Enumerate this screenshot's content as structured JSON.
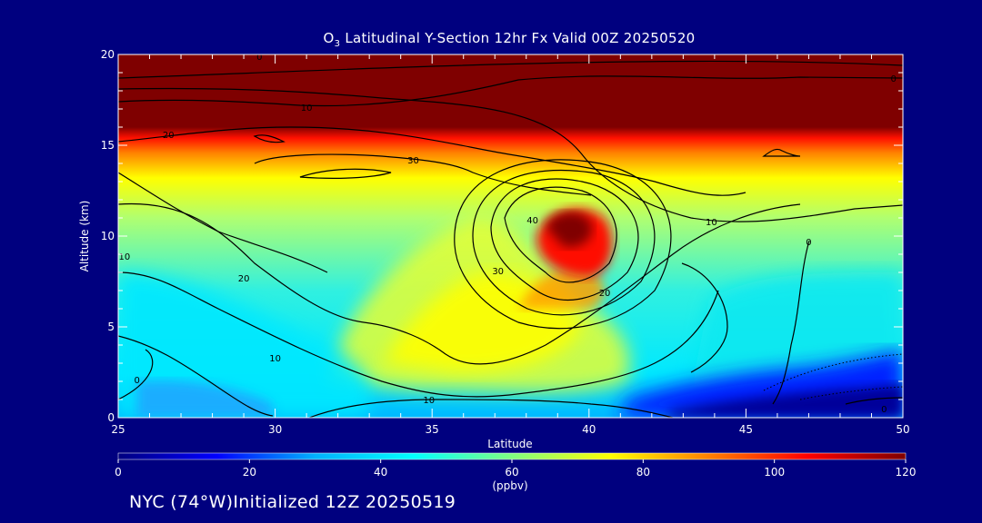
{
  "chart_data": {
    "type": "heatmap",
    "title_prefix": "O",
    "title_sub": "3",
    "title_rest": " Latitudinal Y-Section 12hr  Fx Valid 00Z 20250520",
    "xlabel": "Latitude",
    "ylabel": "Altitude (km)",
    "xlim": [
      25,
      50
    ],
    "ylim": [
      0,
      20
    ],
    "x_ticks": [
      "25",
      "30",
      "35",
      "40",
      "45",
      "50"
    ],
    "y_ticks": [
      "0",
      "5",
      "10",
      "15",
      "20"
    ],
    "colorbar": {
      "units": "(ppbv)",
      "ticks": [
        "0",
        "20",
        "40",
        "60",
        "80",
        "100",
        "120"
      ],
      "range": [
        0,
        120
      ],
      "colors": [
        "#00007f",
        "#0000ff",
        "#00b0ff",
        "#00ffff",
        "#7fff80",
        "#ffff00",
        "#ff8000",
        "#ff0000",
        "#7f0000"
      ]
    },
    "contour_labels": [
      {
        "text": "0",
        "x": 29.5,
        "y": 19.8
      },
      {
        "text": "10",
        "x": 31.0,
        "y": 17.0
      },
      {
        "text": "20",
        "x": 26.6,
        "y": 15.5
      },
      {
        "text": "30",
        "x": 34.4,
        "y": 14.1
      },
      {
        "text": "0",
        "x": 49.7,
        "y": 18.6
      },
      {
        "text": "10",
        "x": 30.0,
        "y": 3.2
      },
      {
        "text": "20",
        "x": 29.0,
        "y": 7.6
      },
      {
        "text": "10",
        "x": 25.2,
        "y": 8.8
      },
      {
        "text": "0",
        "x": 25.6,
        "y": 2.0
      },
      {
        "text": "10",
        "x": 34.9,
        "y": 0.9
      },
      {
        "text": "30",
        "x": 37.1,
        "y": 8.0
      },
      {
        "text": "20",
        "x": 40.5,
        "y": 6.8
      },
      {
        "text": "10",
        "x": 43.9,
        "y": 10.7
      },
      {
        "text": "40",
        "x": 38.2,
        "y": 10.8
      },
      {
        "text": "0",
        "x": 47.0,
        "y": 9.6
      },
      {
        "text": "0",
        "x": 49.4,
        "y": 0.4
      }
    ]
  },
  "footer": "NYC (74°W)Initialized 12Z 20250519"
}
